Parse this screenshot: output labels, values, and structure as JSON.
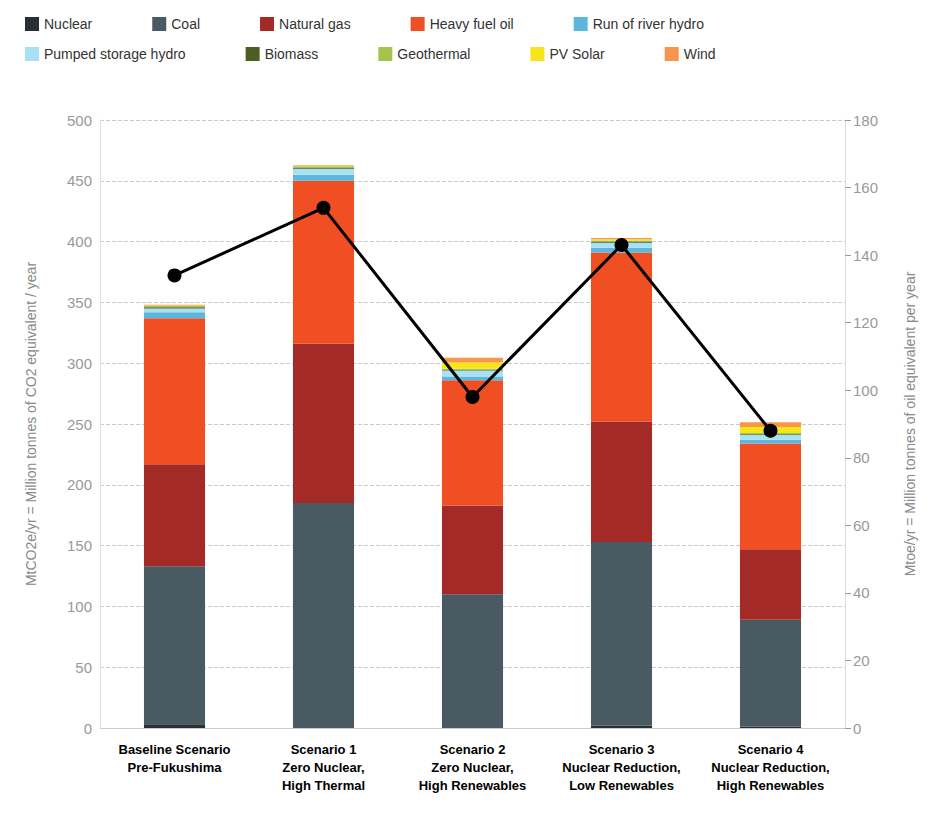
{
  "chart_data": {
    "type": "bar",
    "stacked": true,
    "grid": true,
    "legend": "top",
    "categories": [
      "Baseline Scenario\nPre-Fukushima",
      "Scenario 1\nZero Nuclear,\nHigh Thermal",
      "Scenario 2\nZero Nuclear,\nHigh Renewables",
      "Scenario 3\nNuclear Reduction,\nLow Renewables",
      "Scenario 4\nNuclear Reduction,\nHigh Renewables"
    ],
    "y_label": "MtCO2e/yr = Million tonnes of CO2 equivalent / year",
    "y2_label": "Mtoe/yr = Million tonnes of oil equivalent per year",
    "ylim": [
      0,
      500
    ],
    "yticks": [
      0,
      50,
      100,
      150,
      200,
      250,
      300,
      350,
      400,
      450,
      500
    ],
    "y2lim": [
      0,
      180
    ],
    "y2ticks": [
      0,
      20,
      40,
      60,
      80,
      100,
      120,
      140,
      160,
      180
    ],
    "series": [
      {
        "name": "Nuclear",
        "color": "#2a2f33",
        "values": [
          3,
          0,
          0,
          2,
          1
        ]
      },
      {
        "name": "Coal",
        "color": "#4a5a63",
        "values": [
          130,
          185,
          110,
          151,
          88
        ]
      },
      {
        "name": "Natural gas",
        "color": "#a32a26",
        "values": [
          84,
          131,
          73,
          99,
          58
        ]
      },
      {
        "name": "Heavy fuel oil",
        "color": "#f04e23",
        "values": [
          120,
          134,
          103,
          139,
          87
        ]
      },
      {
        "name": "Run of river hydro",
        "color": "#5bb8dc",
        "values": [
          5,
          5,
          3,
          4,
          3
        ]
      },
      {
        "name": "Pumped storage hydro",
        "color": "#a8e0f5",
        "values": [
          3,
          5,
          5,
          4,
          4
        ]
      },
      {
        "name": "Biomass",
        "color": "#4d5e23",
        "values": [
          1,
          1,
          0.5,
          1,
          0.5
        ]
      },
      {
        "name": "Geothermal",
        "color": "#a7c44a",
        "values": [
          1,
          1,
          1,
          1,
          1
        ]
      },
      {
        "name": "PV Solar",
        "color": "#f7e51a",
        "values": [
          0.5,
          0.5,
          5,
          1,
          5
        ]
      },
      {
        "name": "Wind",
        "color": "#f7964a",
        "values": [
          0.5,
          0.5,
          4,
          1,
          4
        ]
      },
      {
        "type": "line",
        "axis": "y2",
        "color": "#000000",
        "marker": "circle",
        "values": [
          134,
          154,
          98,
          143,
          88
        ]
      }
    ]
  }
}
